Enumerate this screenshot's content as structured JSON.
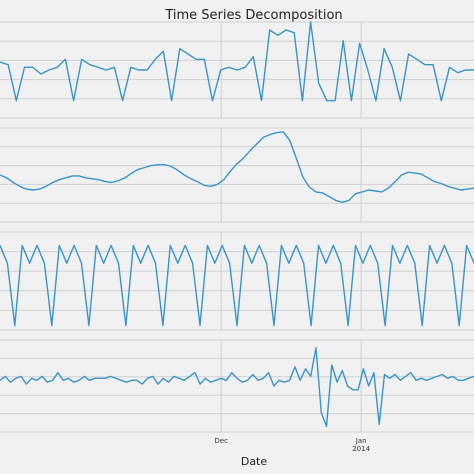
{
  "chart_data": {
    "type": "line",
    "title": "Time Series Decomposition",
    "xlabel": "Date",
    "x_tick_labels": [
      {
        "label": "Dec",
        "sublabel": "",
        "date": "2013-12-01"
      },
      {
        "label": "Jan",
        "sublabel": "2014",
        "date": "2014-01-01"
      }
    ],
    "x_range": [
      "2013-10-13",
      "2014-01-26"
    ],
    "grid": true,
    "line_color": "#3a94c6",
    "panels": [
      {
        "name": "",
        "ylim": [
          -160,
          200
        ],
        "values": [
          50,
          40,
          -95,
          30,
          30,
          5,
          20,
          30,
          60,
          -95,
          60,
          40,
          30,
          20,
          30,
          -95,
          30,
          20,
          20,
          60,
          90,
          -95,
          100,
          80,
          60,
          60,
          -95,
          20,
          30,
          20,
          30,
          70,
          -95,
          170,
          150,
          170,
          160,
          -95,
          200,
          -30,
          -95,
          -95,
          130,
          -95,
          120,
          20,
          -95,
          100,
          30,
          -95,
          80,
          60,
          40,
          40,
          -95,
          30,
          10,
          20,
          20
        ]
      },
      {
        "name": "",
        "ylim": [
          -10,
          90
        ],
        "values": [
          40,
          37,
          32,
          28,
          25,
          24,
          25,
          28,
          32,
          35,
          37,
          39,
          39,
          37,
          36,
          35,
          33,
          32,
          34,
          37,
          42,
          46,
          48,
          50,
          51,
          51,
          49,
          45,
          40,
          36,
          33,
          29,
          28,
          30,
          35,
          44,
          52,
          58,
          66,
          73,
          80,
          83,
          85,
          86,
          77,
          58,
          38,
          27,
          22,
          21,
          17,
          13,
          11,
          13,
          20,
          22,
          24,
          23,
          22,
          26,
          33,
          40,
          43,
          42,
          41,
          37,
          33,
          31,
          28,
          26,
          24,
          25,
          26
        ]
      },
      {
        "name": "",
        "ylim": [
          -130,
          90
        ],
        "values": [
          60,
          20,
          -120,
          60,
          20,
          60,
          20,
          -120,
          60,
          20,
          60,
          20,
          -120,
          60,
          20,
          60,
          20,
          -120,
          60,
          20,
          60,
          20,
          -120,
          60,
          20,
          60,
          20,
          -120,
          60,
          20,
          60,
          20,
          -120,
          60,
          20,
          60,
          20,
          -120,
          60,
          20,
          60,
          20,
          -120,
          60,
          20,
          60,
          20,
          -120,
          60,
          20,
          60,
          20,
          -120,
          60,
          20,
          60,
          20,
          -120,
          60,
          20,
          60,
          20,
          -120,
          60,
          20
        ]
      },
      {
        "name": "",
        "ylim": [
          -140,
          100
        ],
        "values": [
          -5,
          5,
          -10,
          0,
          5,
          -15,
          0,
          -5,
          5,
          -10,
          -5,
          15,
          -5,
          0,
          -10,
          -5,
          5,
          -5,
          0,
          0,
          0,
          5,
          0,
          -5,
          -10,
          -5,
          -5,
          -15,
          0,
          5,
          -15,
          0,
          -10,
          5,
          0,
          -5,
          5,
          15,
          -15,
          0,
          -10,
          -5,
          0,
          -5,
          15,
          0,
          -10,
          -5,
          10,
          -5,
          0,
          15,
          -20,
          -5,
          -10,
          -5,
          30,
          -5,
          25,
          5,
          80,
          -90,
          -125,
          35,
          -10,
          20,
          -20,
          -30,
          -30,
          25,
          -20,
          15,
          -120,
          10,
          0,
          10,
          -5,
          5,
          15,
          -5,
          0,
          -5,
          0,
          5,
          10,
          0,
          5,
          -5,
          -5,
          0,
          5
        ]
      }
    ]
  }
}
